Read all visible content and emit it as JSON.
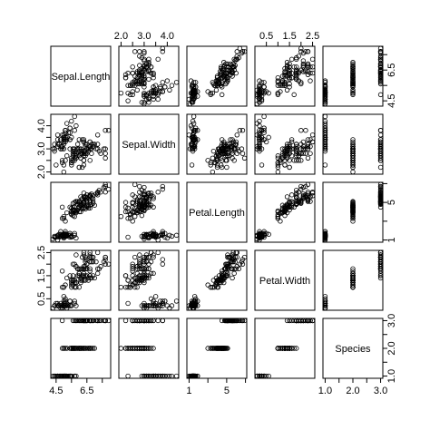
{
  "chart_data": {
    "type": "scatter",
    "variables": [
      {
        "name": "Sepal.Length",
        "range": [
          4.3,
          7.9
        ],
        "ticks": [
          "4.5",
          "5.5",
          "6.5",
          "7.5"
        ],
        "tick_values": [
          4.5,
          5.5,
          6.5,
          7.5
        ]
      },
      {
        "name": "Sepal.Width",
        "range": [
          2.0,
          4.4
        ],
        "ticks": [
          "2.0",
          "2.5",
          "3.0",
          "3.5",
          "4.0"
        ],
        "tick_values": [
          2.0,
          2.5,
          3.0,
          3.5,
          4.0
        ]
      },
      {
        "name": "Petal.Length",
        "range": [
          1.0,
          6.9
        ],
        "ticks": [
          "1",
          "3",
          "5",
          "7"
        ],
        "tick_values": [
          1,
          3,
          5,
          7
        ]
      },
      {
        "name": "Petal.Width",
        "range": [
          0.1,
          2.5
        ],
        "ticks": [
          "0.5",
          "1.0",
          "1.5",
          "2.0",
          "2.5"
        ],
        "tick_values": [
          0.5,
          1.0,
          1.5,
          2.0,
          2.5
        ]
      },
      {
        "name": "Species",
        "range": [
          1.0,
          3.0
        ],
        "ticks": [
          "1.0",
          "1.5",
          "2.0",
          "2.5",
          "3.0"
        ],
        "tick_values": [
          1.0,
          1.5,
          2.0,
          2.5,
          3.0
        ]
      }
    ],
    "observations": [
      [
        5.1,
        3.5,
        1.4,
        0.2,
        1
      ],
      [
        4.9,
        3.0,
        1.4,
        0.2,
        1
      ],
      [
        4.7,
        3.2,
        1.3,
        0.2,
        1
      ],
      [
        4.6,
        3.1,
        1.5,
        0.2,
        1
      ],
      [
        5.0,
        3.6,
        1.4,
        0.2,
        1
      ],
      [
        5.4,
        3.9,
        1.7,
        0.4,
        1
      ],
      [
        4.6,
        3.4,
        1.4,
        0.3,
        1
      ],
      [
        5.0,
        3.4,
        1.5,
        0.2,
        1
      ],
      [
        4.4,
        2.9,
        1.4,
        0.2,
        1
      ],
      [
        4.9,
        3.1,
        1.5,
        0.1,
        1
      ],
      [
        5.4,
        3.7,
        1.5,
        0.2,
        1
      ],
      [
        4.8,
        3.4,
        1.6,
        0.2,
        1
      ],
      [
        4.8,
        3.0,
        1.4,
        0.1,
        1
      ],
      [
        4.3,
        3.0,
        1.1,
        0.1,
        1
      ],
      [
        5.8,
        4.0,
        1.2,
        0.2,
        1
      ],
      [
        5.7,
        4.4,
        1.5,
        0.4,
        1
      ],
      [
        5.4,
        3.9,
        1.3,
        0.4,
        1
      ],
      [
        5.1,
        3.5,
        1.4,
        0.3,
        1
      ],
      [
        5.7,
        3.8,
        1.7,
        0.3,
        1
      ],
      [
        5.1,
        3.8,
        1.5,
        0.3,
        1
      ],
      [
        5.4,
        3.4,
        1.7,
        0.2,
        1
      ],
      [
        5.1,
        3.7,
        1.5,
        0.4,
        1
      ],
      [
        4.6,
        3.6,
        1.0,
        0.2,
        1
      ],
      [
        5.1,
        3.3,
        1.7,
        0.5,
        1
      ],
      [
        4.8,
        3.4,
        1.9,
        0.2,
        1
      ],
      [
        5.0,
        3.0,
        1.6,
        0.2,
        1
      ],
      [
        5.0,
        3.4,
        1.6,
        0.4,
        1
      ],
      [
        5.2,
        3.5,
        1.5,
        0.2,
        1
      ],
      [
        5.2,
        3.4,
        1.4,
        0.2,
        1
      ],
      [
        4.7,
        3.2,
        1.6,
        0.2,
        1
      ],
      [
        4.8,
        3.1,
        1.6,
        0.2,
        1
      ],
      [
        5.4,
        3.4,
        1.5,
        0.4,
        1
      ],
      [
        5.2,
        4.1,
        1.5,
        0.1,
        1
      ],
      [
        5.5,
        4.2,
        1.4,
        0.2,
        1
      ],
      [
        4.9,
        3.1,
        1.5,
        0.2,
        1
      ],
      [
        5.0,
        3.2,
        1.2,
        0.2,
        1
      ],
      [
        5.5,
        3.5,
        1.3,
        0.2,
        1
      ],
      [
        4.9,
        3.6,
        1.4,
        0.1,
        1
      ],
      [
        4.4,
        3.0,
        1.3,
        0.2,
        1
      ],
      [
        5.1,
        3.4,
        1.5,
        0.2,
        1
      ],
      [
        5.0,
        3.5,
        1.3,
        0.3,
        1
      ],
      [
        4.5,
        2.3,
        1.3,
        0.3,
        1
      ],
      [
        4.4,
        3.2,
        1.3,
        0.2,
        1
      ],
      [
        5.0,
        3.5,
        1.6,
        0.6,
        1
      ],
      [
        5.1,
        3.8,
        1.9,
        0.4,
        1
      ],
      [
        4.8,
        3.0,
        1.4,
        0.3,
        1
      ],
      [
        5.1,
        3.8,
        1.6,
        0.2,
        1
      ],
      [
        4.6,
        3.2,
        1.4,
        0.2,
        1
      ],
      [
        5.3,
        3.7,
        1.5,
        0.2,
        1
      ],
      [
        5.0,
        3.3,
        1.4,
        0.2,
        1
      ],
      [
        7.0,
        3.2,
        4.7,
        1.4,
        2
      ],
      [
        6.4,
        3.2,
        4.5,
        1.5,
        2
      ],
      [
        6.9,
        3.1,
        4.9,
        1.5,
        2
      ],
      [
        5.5,
        2.3,
        4.0,
        1.3,
        2
      ],
      [
        6.5,
        2.8,
        4.6,
        1.5,
        2
      ],
      [
        5.7,
        2.8,
        4.5,
        1.3,
        2
      ],
      [
        6.3,
        3.3,
        4.7,
        1.6,
        2
      ],
      [
        4.9,
        2.4,
        3.3,
        1.0,
        2
      ],
      [
        6.6,
        2.9,
        4.6,
        1.3,
        2
      ],
      [
        5.2,
        2.7,
        3.9,
        1.4,
        2
      ],
      [
        5.0,
        2.0,
        3.5,
        1.0,
        2
      ],
      [
        5.9,
        3.0,
        4.2,
        1.5,
        2
      ],
      [
        6.0,
        2.2,
        4.0,
        1.0,
        2
      ],
      [
        6.1,
        2.9,
        4.7,
        1.4,
        2
      ],
      [
        5.6,
        2.9,
        3.6,
        1.3,
        2
      ],
      [
        6.7,
        3.1,
        4.4,
        1.4,
        2
      ],
      [
        5.6,
        3.0,
        4.5,
        1.5,
        2
      ],
      [
        5.8,
        2.7,
        4.1,
        1.0,
        2
      ],
      [
        6.2,
        2.2,
        4.5,
        1.5,
        2
      ],
      [
        5.6,
        2.5,
        3.9,
        1.1,
        2
      ],
      [
        5.9,
        3.2,
        4.8,
        1.8,
        2
      ],
      [
        6.1,
        2.8,
        4.0,
        1.3,
        2
      ],
      [
        6.3,
        2.5,
        4.9,
        1.5,
        2
      ],
      [
        6.1,
        2.8,
        4.7,
        1.2,
        2
      ],
      [
        6.4,
        2.9,
        4.3,
        1.3,
        2
      ],
      [
        6.6,
        3.0,
        4.4,
        1.4,
        2
      ],
      [
        6.8,
        2.8,
        4.8,
        1.4,
        2
      ],
      [
        6.7,
        3.0,
        5.0,
        1.7,
        2
      ],
      [
        6.0,
        2.9,
        4.5,
        1.5,
        2
      ],
      [
        5.7,
        2.6,
        3.5,
        1.0,
        2
      ],
      [
        5.5,
        2.4,
        3.8,
        1.1,
        2
      ],
      [
        5.5,
        2.4,
        3.7,
        1.0,
        2
      ],
      [
        5.8,
        2.7,
        3.9,
        1.2,
        2
      ],
      [
        6.0,
        2.7,
        5.1,
        1.6,
        2
      ],
      [
        5.4,
        3.0,
        4.5,
        1.5,
        2
      ],
      [
        6.0,
        3.4,
        4.5,
        1.6,
        2
      ],
      [
        6.7,
        3.1,
        4.7,
        1.5,
        2
      ],
      [
        6.3,
        2.3,
        4.4,
        1.3,
        2
      ],
      [
        5.6,
        3.0,
        4.1,
        1.3,
        2
      ],
      [
        5.5,
        2.5,
        4.0,
        1.3,
        2
      ],
      [
        5.5,
        2.6,
        4.4,
        1.2,
        2
      ],
      [
        6.1,
        3.0,
        4.6,
        1.4,
        2
      ],
      [
        5.8,
        2.6,
        4.0,
        1.2,
        2
      ],
      [
        5.0,
        2.3,
        3.3,
        1.0,
        2
      ],
      [
        5.6,
        2.7,
        4.2,
        1.3,
        2
      ],
      [
        5.7,
        3.0,
        4.2,
        1.2,
        2
      ],
      [
        5.7,
        2.9,
        4.2,
        1.3,
        2
      ],
      [
        6.2,
        2.9,
        4.3,
        1.3,
        2
      ],
      [
        5.1,
        2.5,
        3.0,
        1.1,
        2
      ],
      [
        5.7,
        2.8,
        4.1,
        1.3,
        2
      ],
      [
        6.3,
        3.3,
        6.0,
        2.5,
        3
      ],
      [
        5.8,
        2.7,
        5.1,
        1.9,
        3
      ],
      [
        7.1,
        3.0,
        5.9,
        2.1,
        3
      ],
      [
        6.3,
        2.9,
        5.6,
        1.8,
        3
      ],
      [
        6.5,
        3.0,
        5.8,
        2.2,
        3
      ],
      [
        7.6,
        3.0,
        6.6,
        2.1,
        3
      ],
      [
        4.9,
        2.5,
        4.5,
        1.7,
        3
      ],
      [
        7.3,
        2.9,
        6.3,
        1.8,
        3
      ],
      [
        6.7,
        2.5,
        5.8,
        1.8,
        3
      ],
      [
        7.2,
        3.6,
        6.1,
        2.5,
        3
      ],
      [
        6.5,
        3.2,
        5.1,
        2.0,
        3
      ],
      [
        6.4,
        2.7,
        5.3,
        1.9,
        3
      ],
      [
        6.8,
        3.0,
        5.5,
        2.1,
        3
      ],
      [
        5.7,
        2.5,
        5.0,
        2.0,
        3
      ],
      [
        5.8,
        2.8,
        5.1,
        2.4,
        3
      ],
      [
        6.4,
        3.2,
        5.3,
        2.3,
        3
      ],
      [
        6.5,
        3.0,
        5.5,
        1.8,
        3
      ],
      [
        7.7,
        3.8,
        6.7,
        2.2,
        3
      ],
      [
        7.7,
        2.6,
        6.9,
        2.3,
        3
      ],
      [
        6.0,
        2.2,
        5.0,
        1.5,
        3
      ],
      [
        6.9,
        3.2,
        5.7,
        2.3,
        3
      ],
      [
        5.6,
        2.8,
        4.9,
        2.0,
        3
      ],
      [
        7.7,
        2.8,
        6.7,
        2.0,
        3
      ],
      [
        6.3,
        2.7,
        4.9,
        1.8,
        3
      ],
      [
        6.7,
        3.3,
        5.7,
        2.1,
        3
      ],
      [
        7.2,
        3.2,
        6.0,
        1.8,
        3
      ],
      [
        6.2,
        2.8,
        4.8,
        1.8,
        3
      ],
      [
        6.1,
        3.0,
        4.9,
        1.8,
        3
      ],
      [
        6.4,
        2.8,
        5.6,
        2.1,
        3
      ],
      [
        7.2,
        3.0,
        5.8,
        1.6,
        3
      ],
      [
        7.4,
        2.8,
        6.1,
        1.9,
        3
      ],
      [
        7.9,
        3.8,
        6.4,
        2.0,
        3
      ],
      [
        6.4,
        2.8,
        5.6,
        2.2,
        3
      ],
      [
        6.3,
        2.8,
        5.1,
        1.5,
        3
      ],
      [
        6.1,
        2.6,
        5.6,
        1.4,
        3
      ],
      [
        7.7,
        3.0,
        6.1,
        2.3,
        3
      ],
      [
        6.3,
        3.4,
        5.6,
        2.4,
        3
      ],
      [
        6.4,
        3.1,
        5.5,
        1.8,
        3
      ],
      [
        6.0,
        3.0,
        4.8,
        1.8,
        3
      ],
      [
        6.9,
        3.1,
        5.4,
        2.1,
        3
      ],
      [
        6.7,
        3.1,
        5.6,
        2.4,
        3
      ],
      [
        6.9,
        3.1,
        5.1,
        2.3,
        3
      ],
      [
        5.8,
        2.7,
        5.1,
        1.9,
        3
      ],
      [
        6.8,
        3.2,
        5.9,
        2.3,
        3
      ],
      [
        6.7,
        3.3,
        5.7,
        2.5,
        3
      ],
      [
        6.7,
        3.0,
        5.2,
        2.3,
        3
      ],
      [
        6.3,
        2.5,
        5.0,
        1.9,
        3
      ],
      [
        6.5,
        3.0,
        5.2,
        2.0,
        3
      ],
      [
        6.2,
        3.4,
        5.4,
        2.3,
        3
      ],
      [
        5.9,
        3.0,
        5.1,
        1.8,
        3
      ]
    ],
    "grid": false,
    "legend": false
  }
}
